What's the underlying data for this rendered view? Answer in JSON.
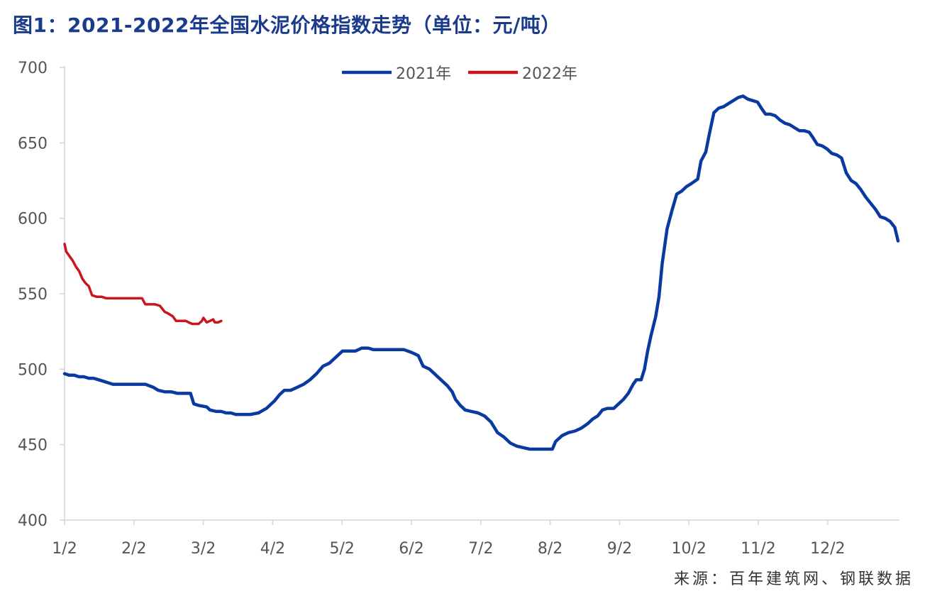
{
  "title": "图1：2021-2022年全国水泥价格指数走势（单位：元/吨）",
  "source": "来源：百年建筑网、钢联数据",
  "colors": {
    "series_2021": "#0a3aa0",
    "series_2022": "#c8161d",
    "axis": "#d0d4dc",
    "tick_text": "#555555",
    "title": "#1a3a8c"
  },
  "chart_data": {
    "type": "line",
    "title": "图1：2021-2022年全国水泥价格指数走势（单位：元/吨）",
    "xlabel": "",
    "ylabel": "",
    "x_tick_labels": [
      "1/2",
      "2/2",
      "3/2",
      "4/2",
      "5/2",
      "6/2",
      "7/2",
      "8/2",
      "9/2",
      "10/2",
      "11/2",
      "12/2"
    ],
    "y_tick_labels": [
      "400",
      "450",
      "500",
      "550",
      "600",
      "650",
      "700"
    ],
    "ylim": [
      400,
      700
    ],
    "xlim_days": [
      0,
      364
    ],
    "grid": false,
    "legend_position": "top-center",
    "series": [
      {
        "name": "2021年",
        "color": "#0a3aa0",
        "points": [
          [
            0,
            497
          ],
          [
            3,
            496
          ],
          [
            6,
            496
          ],
          [
            9,
            495
          ],
          [
            12,
            495
          ],
          [
            15,
            494
          ],
          [
            18,
            494
          ],
          [
            21,
            493
          ],
          [
            24,
            492
          ],
          [
            27,
            491
          ],
          [
            30,
            490
          ],
          [
            33,
            490
          ],
          [
            36,
            490
          ],
          [
            40,
            490
          ],
          [
            45,
            490
          ],
          [
            50,
            490
          ],
          [
            55,
            488
          ],
          [
            58,
            486
          ],
          [
            62,
            485
          ],
          [
            66,
            485
          ],
          [
            70,
            484
          ],
          [
            75,
            484
          ],
          [
            78,
            484
          ],
          [
            80,
            477
          ],
          [
            83,
            476
          ],
          [
            88,
            475
          ],
          [
            90,
            473
          ],
          [
            94,
            472
          ],
          [
            97,
            472
          ],
          [
            100,
            471
          ],
          [
            103,
            471
          ],
          [
            106,
            470
          ],
          [
            110,
            470
          ],
          [
            115,
            470
          ],
          [
            120,
            471
          ],
          [
            125,
            474
          ],
          [
            130,
            479
          ],
          [
            133,
            483
          ],
          [
            136,
            486
          ],
          [
            140,
            486
          ],
          [
            144,
            488
          ],
          [
            148,
            490
          ],
          [
            152,
            493
          ],
          [
            156,
            497
          ],
          [
            160,
            502
          ],
          [
            164,
            504
          ],
          [
            168,
            508
          ],
          [
            172,
            512
          ],
          [
            176,
            512
          ],
          [
            180,
            512
          ],
          [
            184,
            514
          ],
          [
            188,
            514
          ],
          [
            191,
            513
          ],
          [
            196,
            513
          ],
          [
            200,
            513
          ],
          [
            205,
            513
          ],
          [
            210,
            513
          ],
          [
            215,
            511
          ],
          [
            219,
            509
          ],
          [
            222,
            502
          ],
          [
            226,
            500
          ],
          [
            230,
            496
          ],
          [
            234,
            492
          ],
          [
            237,
            489
          ],
          [
            240,
            485
          ],
          [
            242,
            480
          ],
          [
            245,
            476
          ],
          [
            248,
            473
          ],
          [
            252,
            472
          ],
          [
            256,
            471
          ],
          [
            260,
            469
          ],
          [
            264,
            465
          ],
          [
            268,
            458
          ],
          [
            272,
            455
          ],
          [
            276,
            451
          ],
          [
            280,
            449
          ],
          [
            284,
            448
          ],
          [
            288,
            447
          ],
          [
            292,
            447
          ],
          [
            296,
            447
          ],
          [
            299,
            447
          ],
          [
            302,
            447
          ],
          [
            304,
            452
          ],
          [
            308,
            456
          ],
          [
            312,
            458
          ],
          [
            316,
            459
          ],
          [
            320,
            461
          ],
          [
            324,
            464
          ],
          [
            327,
            467
          ],
          [
            330,
            469
          ],
          [
            333,
            473
          ],
          [
            336,
            474
          ],
          [
            340,
            474
          ],
          [
            343,
            477
          ],
          [
            346,
            480
          ],
          [
            349,
            484
          ],
          [
            352,
            490
          ],
          [
            354,
            493
          ],
          [
            357,
            493
          ],
          [
            359,
            500
          ],
          [
            361,
            512
          ],
          [
            363,
            522
          ],
          [
            366,
            535
          ],
          [
            368,
            548
          ],
          [
            370,
            570
          ],
          [
            373,
            593
          ],
          [
            376,
            605
          ],
          [
            379,
            616
          ],
          [
            382,
            618
          ],
          [
            385,
            621
          ],
          [
            388,
            623
          ],
          [
            392,
            626
          ],
          [
            394,
            638
          ],
          [
            397,
            644
          ],
          [
            399,
            655
          ],
          [
            402,
            670
          ],
          [
            405,
            673
          ],
          [
            408,
            674
          ],
          [
            411,
            676
          ],
          [
            414,
            678
          ],
          [
            417,
            680
          ],
          [
            420,
            681
          ],
          [
            423,
            679
          ],
          [
            426,
            678
          ],
          [
            429,
            677
          ],
          [
            432,
            672
          ],
          [
            434,
            669
          ],
          [
            437,
            669
          ],
          [
            440,
            668
          ],
          [
            443,
            665
          ],
          [
            446,
            663
          ],
          [
            449,
            662
          ],
          [
            452,
            660
          ],
          [
            455,
            658
          ],
          [
            458,
            658
          ],
          [
            461,
            657
          ],
          [
            463,
            654
          ],
          [
            466,
            649
          ],
          [
            469,
            648
          ],
          [
            472,
            646
          ],
          [
            475,
            643
          ],
          [
            478,
            642
          ],
          [
            481,
            640
          ],
          [
            484,
            630
          ],
          [
            487,
            625
          ],
          [
            490,
            623
          ],
          [
            493,
            619
          ],
          [
            496,
            614
          ],
          [
            499,
            610
          ],
          [
            502,
            606
          ],
          [
            505,
            601
          ],
          [
            508,
            600
          ],
          [
            511,
            598
          ],
          [
            514,
            594
          ],
          [
            516,
            585
          ]
        ]
      },
      {
        "name": "2022年",
        "color": "#c8161d",
        "points": [
          [
            0,
            583
          ],
          [
            1,
            578
          ],
          [
            3,
            575
          ],
          [
            5,
            572
          ],
          [
            7,
            568
          ],
          [
            9,
            565
          ],
          [
            11,
            560
          ],
          [
            13,
            557
          ],
          [
            15,
            555
          ],
          [
            17,
            549
          ],
          [
            20,
            548
          ],
          [
            23,
            548
          ],
          [
            26,
            547
          ],
          [
            30,
            547
          ],
          [
            35,
            547
          ],
          [
            40,
            547
          ],
          [
            45,
            547
          ],
          [
            48,
            547
          ],
          [
            50,
            543
          ],
          [
            53,
            543
          ],
          [
            56,
            543
          ],
          [
            59,
            542
          ],
          [
            62,
            538
          ],
          [
            64,
            537
          ],
          [
            67,
            535
          ],
          [
            69,
            532
          ],
          [
            72,
            532
          ],
          [
            75,
            532
          ],
          [
            77,
            531
          ],
          [
            79,
            530
          ],
          [
            81,
            530
          ],
          [
            83,
            530
          ],
          [
            85,
            532
          ],
          [
            86,
            534
          ],
          [
            88,
            531
          ],
          [
            90,
            532
          ],
          [
            92,
            533
          ],
          [
            93,
            531
          ],
          [
            95,
            531
          ],
          [
            97,
            532
          ]
        ]
      }
    ]
  }
}
